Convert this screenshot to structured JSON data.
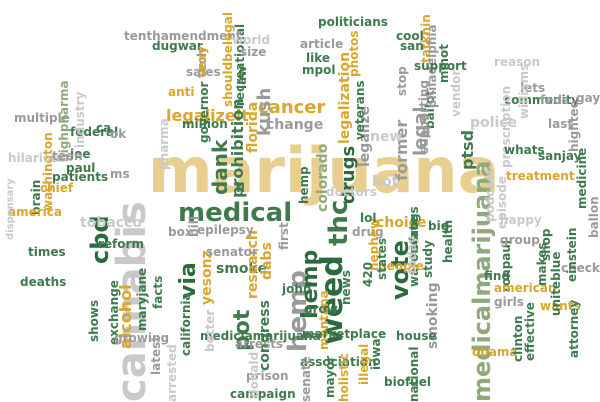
{
  "palette": {
    "tan": "#e8cf8f",
    "gold": "#d9a62e",
    "green": "#3f7a4e",
    "darkgreen": "#2a6a3d",
    "sage": "#8fa97a",
    "gray": "#9a9a9a",
    "lightgray": "#c9c9c9"
  },
  "words": [
    {
      "text": "marijuana",
      "color": "tan"
    },
    {
      "text": "medicalmarijuana",
      "color": "sage"
    },
    {
      "text": "cannabis",
      "color": "lightgray"
    },
    {
      "text": "medical",
      "color": "green"
    },
    {
      "text": "weed",
      "color": "darkgreen"
    },
    {
      "text": "hemp",
      "color": "gray"
    },
    {
      "text": "thc",
      "color": "green"
    },
    {
      "text": "vote",
      "color": "darkgreen"
    },
    {
      "text": "cbd",
      "color": "darkgreen"
    },
    {
      "text": "cancer",
      "color": "gold"
    },
    {
      "text": "pot",
      "color": "green"
    },
    {
      "text": "dank",
      "color": "green"
    },
    {
      "text": "drugs",
      "color": "darkgreen"
    },
    {
      "text": "kush",
      "color": "gray"
    },
    {
      "text": "legalizeit",
      "color": "gold"
    },
    {
      "text": "prohibition",
      "color": "green"
    },
    {
      "text": "colorado",
      "color": "sage"
    },
    {
      "text": "smoke",
      "color": "green"
    },
    {
      "text": "tobacco",
      "color": "lightgray"
    },
    {
      "text": "alcohol",
      "color": "gold"
    },
    {
      "text": "via",
      "color": "darkgreen"
    },
    {
      "text": "hemp",
      "color": "darkgreen"
    },
    {
      "text": "legalize",
      "color": "gray"
    },
    {
      "text": "former",
      "color": "gray"
    },
    {
      "text": "legal",
      "color": "gray"
    },
    {
      "text": "new",
      "color": "lightgray"
    },
    {
      "text": "hot",
      "color": "lightgray"
    },
    {
      "text": "choice",
      "color": "gold"
    },
    {
      "text": "smoking",
      "color": "gray"
    },
    {
      "text": "ptsd",
      "color": "green"
    },
    {
      "text": "podcast",
      "color": "lightgray"
    },
    {
      "text": "florida",
      "color": "gold"
    },
    {
      "text": "change",
      "color": "gray"
    },
    {
      "text": "million",
      "color": "green"
    },
    {
      "text": "legalization",
      "color": "gold"
    },
    {
      "text": "research",
      "color": "gold"
    },
    {
      "text": "congress",
      "color": "green"
    },
    {
      "text": "dabs",
      "color": "gold"
    },
    {
      "text": "yesonz",
      "color": "gold"
    },
    {
      "text": "maryjane",
      "color": "green"
    },
    {
      "text": "california",
      "color": "green"
    },
    {
      "text": "mediclamarijuana",
      "color": "green"
    },
    {
      "text": "epilepsy",
      "color": "gray"
    },
    {
      "text": "senator",
      "color": "gray"
    },
    {
      "text": "reform",
      "color": "green"
    },
    {
      "text": "exchange",
      "color": "green"
    },
    {
      "text": "facts",
      "color": "green"
    },
    {
      "text": "federal",
      "color": "green"
    },
    {
      "text": "patients",
      "color": "green"
    },
    {
      "text": "washington",
      "color": "gold"
    },
    {
      "text": "chief",
      "color": "gold"
    },
    {
      "text": "pharma",
      "color": "lightgray"
    },
    {
      "text": "governor",
      "color": "green"
    },
    {
      "text": "recreational",
      "color": "green"
    },
    {
      "text": "police",
      "color": "lightgray"
    },
    {
      "text": "warondrugs",
      "color": "green"
    },
    {
      "text": "state",
      "color": "green"
    },
    {
      "text": "health",
      "color": "green"
    },
    {
      "text": "montana",
      "color": "gold"
    },
    {
      "text": "grow",
      "color": "green"
    },
    {
      "text": "news",
      "color": "green"
    },
    {
      "text": "people",
      "color": "gold"
    },
    {
      "text": "states",
      "color": "green"
    },
    {
      "text": "marketplace",
      "color": "green"
    },
    {
      "text": "association",
      "color": "green"
    },
    {
      "text": "arrests",
      "color": "gray"
    },
    {
      "text": "john",
      "color": "green"
    },
    {
      "text": "study",
      "color": "green"
    },
    {
      "text": "today",
      "color": "lightgray"
    },
    {
      "text": "drug",
      "color": "gray"
    },
    {
      "text": "big",
      "color": "green"
    },
    {
      "text": "find",
      "color": "green"
    },
    {
      "text": "ronpaul",
      "color": "green"
    },
    {
      "text": "american",
      "color": "gold"
    },
    {
      "text": "episode",
      "color": "lightgray"
    },
    {
      "text": "shop",
      "color": "green"
    },
    {
      "text": "treatment",
      "color": "gold"
    },
    {
      "text": "community",
      "color": "green"
    },
    {
      "text": "prescription",
      "color": "lightgray"
    },
    {
      "text": "lets",
      "color": "gray"
    },
    {
      "text": "reason",
      "color": "lightgray"
    },
    {
      "text": "politicians",
      "color": "green"
    },
    {
      "text": "tenthamendment",
      "color": "gray"
    },
    {
      "text": "article",
      "color": "gray"
    },
    {
      "text": "veterans",
      "color": "green"
    },
    {
      "text": "stop",
      "color": "gray"
    },
    {
      "text": "mpol",
      "color": "green"
    },
    {
      "text": "law",
      "color": "green"
    },
    {
      "text": "size",
      "color": "gray"
    },
    {
      "text": "world",
      "color": "lightgray"
    },
    {
      "text": "sales",
      "color": "gray"
    },
    {
      "text": "multiple",
      "color": "gray"
    },
    {
      "text": "bighpharma",
      "color": "sage"
    },
    {
      "text": "industry",
      "color": "lightgray"
    },
    {
      "text": "hilarious",
      "color": "lightgray"
    },
    {
      "text": "brain",
      "color": "green"
    },
    {
      "text": "america",
      "color": "gold"
    },
    {
      "text": "deaths",
      "color": "green"
    },
    {
      "text": "times",
      "color": "green"
    },
    {
      "text": "ballot",
      "color": "green"
    },
    {
      "text": "supporting",
      "color": "gray"
    },
    {
      "text": "williams",
      "color": "lightgray"
    },
    {
      "text": "obama",
      "color": "gold"
    },
    {
      "text": "clinton",
      "color": "green"
    },
    {
      "text": "effective",
      "color": "green"
    },
    {
      "text": "wants",
      "color": "gold"
    },
    {
      "text": "girls",
      "color": "gray"
    },
    {
      "text": "attorney",
      "color": "green"
    },
    {
      "text": "check",
      "color": "gray"
    },
    {
      "text": "einstein",
      "color": "green"
    },
    {
      "text": "prison",
      "color": "gray"
    },
    {
      "text": "campaign",
      "color": "green"
    },
    {
      "text": "senate",
      "color": "gray"
    },
    {
      "text": "biofuel",
      "color": "green"
    },
    {
      "text": "national",
      "color": "green"
    },
    {
      "text": "house",
      "color": "green"
    },
    {
      "text": "iowa",
      "color": "green"
    },
    {
      "text": "illegal",
      "color": "gold"
    },
    {
      "text": "mayor",
      "color": "green"
    },
    {
      "text": "holistic",
      "color": "gold"
    },
    {
      "text": "growing",
      "color": "gray"
    },
    {
      "text": "shows",
      "color": "green"
    },
    {
      "text": "doctors",
      "color": "lightgray"
    },
    {
      "text": "hemp",
      "color": "green"
    },
    {
      "text": "nephew",
      "color": "gold"
    },
    {
      "text": "dispensary",
      "color": "lightgray"
    },
    {
      "text": "joe",
      "color": "green"
    },
    {
      "text": "paul",
      "color": "green"
    },
    {
      "text": "ms",
      "color": "gray"
    },
    {
      "text": "teen",
      "color": "gray"
    },
    {
      "text": "happy",
      "color": "lightgray"
    },
    {
      "text": "group",
      "color": "gray"
    },
    {
      "text": "hightee",
      "color": "gray"
    },
    {
      "text": "feds",
      "color": "gray"
    },
    {
      "text": "sanjay",
      "color": "green"
    },
    {
      "text": "makes",
      "color": "green"
    },
    {
      "text": "uniteblue",
      "color": "green"
    },
    {
      "text": "medicine",
      "color": "green"
    },
    {
      "text": "ballon",
      "color": "gray"
    },
    {
      "text": "gay",
      "color": "gray"
    },
    {
      "text": "last",
      "color": "gray"
    },
    {
      "text": "whats",
      "color": "green"
    },
    {
      "text": "photos",
      "color": "gold"
    },
    {
      "text": "anti",
      "color": "gold"
    },
    {
      "text": "tech",
      "color": "gray"
    },
    {
      "text": "like",
      "color": "green"
    },
    {
      "text": "dugwar",
      "color": "green"
    },
    {
      "text": "sexy",
      "color": "gold"
    },
    {
      "text": "shouldbelegal",
      "color": "gold"
    },
    {
      "text": "tatkhin",
      "color": "gold"
    },
    {
      "text": "philadelphia",
      "color": "gray"
    },
    {
      "text": "mmot",
      "color": "green"
    },
    {
      "text": "cool",
      "color": "green"
    },
    {
      "text": "san",
      "color": "green"
    },
    {
      "text": "vendor",
      "color": "lightgray"
    },
    {
      "text": "ca",
      "color": "green"
    },
    {
      "text": "ok",
      "color": "gray"
    },
    {
      "text": "box",
      "color": "gray"
    },
    {
      "text": "bill",
      "color": "gray"
    },
    {
      "text": "fl",
      "color": "green"
    },
    {
      "text": "first",
      "color": "gray"
    },
    {
      "text": "lol",
      "color": "green"
    },
    {
      "text": "420",
      "color": "green"
    },
    {
      "text": "latest",
      "color": "gray"
    },
    {
      "text": "better",
      "color": "lightgray"
    },
    {
      "text": "arrested",
      "color": "lightgray"
    },
    {
      "text": "donald",
      "color": "lightgray"
    },
    {
      "text": "support",
      "color": "green"
    }
  ]
}
